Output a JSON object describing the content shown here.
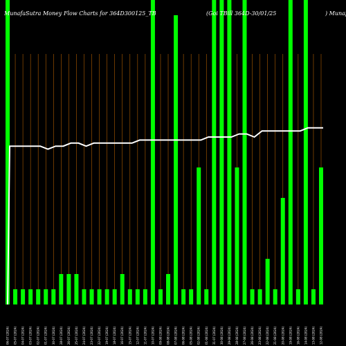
{
  "chart_data": {
    "type": "bar",
    "title_left": "MunafaSutra  Money Flow  Charts for 364D300125_TB",
    "title_mid": "(Goi   TBill  364D-30/01/25",
    "title_right": ") Munafa",
    "colors": {
      "background": "#000000",
      "bar": "#00ff00",
      "gridline": "#b35f00",
      "line": "#ffffff"
    },
    "grid": true,
    "categories": [
      "06-07 (2024)",
      "05-07 (2024)",
      "04-07 (2024)",
      "03-07 (2024)",
      "02-07 (2024)",
      "01-07 (2024)",
      "30-07 (2024)",
      "28-07 (2024)",
      "26-07 (2024)",
      "25-07 (2024)",
      "24-07 (2024)",
      "23-07 (2024)",
      "22-07 (2024)",
      "19-07 (2024)",
      "18-07 (2024)",
      "16-07 (2024)",
      "15-07 (2024)",
      "12-07 (2024)",
      "11-07 (2024)",
      "10-07 (2024)",
      "09-08 (2024)",
      "08-08 (2024)",
      "07-08 (2024)",
      "06-08 (2024)",
      "05-08 (2024)",
      "02-08 (2024)",
      "01-08 (2024)",
      "31-07 (2024)",
      "30-08 (2024)",
      "29-08 (2024)",
      "28-08 (2024)",
      "27-08 (2024)",
      "26-08 (2024)",
      "23-08 (2024)",
      "22-08 (2024)",
      "21-08 (2024)",
      "20-08 (2024)",
      "19-08 (2024)",
      "16-08 (2024)",
      "14-08 (2024)",
      "13-08 (2024)",
      "12-08 (2024)"
    ],
    "values": [
      100,
      5,
      5,
      5,
      5,
      5,
      5,
      10,
      10,
      10,
      5,
      5,
      5,
      5,
      5,
      10,
      5,
      5,
      5,
      100,
      5,
      10,
      95,
      5,
      5,
      45,
      5,
      100,
      100,
      100,
      45,
      100,
      5,
      5,
      15,
      5,
      35,
      100,
      5,
      100,
      5,
      45
    ],
    "money_flow_line": [
      52,
      52,
      52,
      52,
      52,
      51,
      52,
      52,
      53,
      53,
      52,
      53,
      53,
      53,
      53,
      53,
      53,
      54,
      54,
      54,
      54,
      54,
      54,
      54,
      54,
      54,
      55,
      55,
      55,
      55,
      56,
      56,
      55,
      57,
      57,
      57,
      57,
      57,
      57,
      58,
      58,
      58
    ],
    "ylim": [
      0,
      100
    ]
  }
}
